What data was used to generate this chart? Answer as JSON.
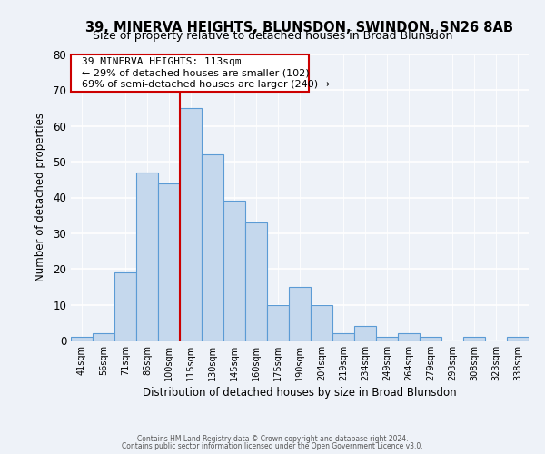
{
  "title": "39, MINERVA HEIGHTS, BLUNSDON, SWINDON, SN26 8AB",
  "subtitle": "Size of property relative to detached houses in Broad Blunsdon",
  "xlabel": "Distribution of detached houses by size in Broad Blunsdon",
  "ylabel": "Number of detached properties",
  "bin_labels": [
    "41sqm",
    "56sqm",
    "71sqm",
    "86sqm",
    "100sqm",
    "115sqm",
    "130sqm",
    "145sqm",
    "160sqm",
    "175sqm",
    "190sqm",
    "204sqm",
    "219sqm",
    "234sqm",
    "249sqm",
    "264sqm",
    "279sqm",
    "293sqm",
    "308sqm",
    "323sqm",
    "338sqm"
  ],
  "bar_heights": [
    1,
    2,
    19,
    47,
    44,
    65,
    52,
    39,
    33,
    10,
    15,
    10,
    2,
    4,
    1,
    2,
    1,
    0,
    1,
    0,
    1
  ],
  "bar_color": "#c5d8ed",
  "bar_edge_color": "#5b9bd5",
  "vline_color": "#cc0000",
  "ylim": [
    0,
    80
  ],
  "yticks": [
    0,
    10,
    20,
    30,
    40,
    50,
    60,
    70,
    80
  ],
  "annotation_title": "39 MINERVA HEIGHTS: 113sqm",
  "annotation_line1": "← 29% of detached houses are smaller (102)",
  "annotation_line2": "69% of semi-detached houses are larger (240) →",
  "annotation_box_color": "#cc0000",
  "footer_line1": "Contains HM Land Registry data © Crown copyright and database right 2024.",
  "footer_line2": "Contains public sector information licensed under the Open Government Licence v3.0.",
  "background_color": "#eef2f8"
}
